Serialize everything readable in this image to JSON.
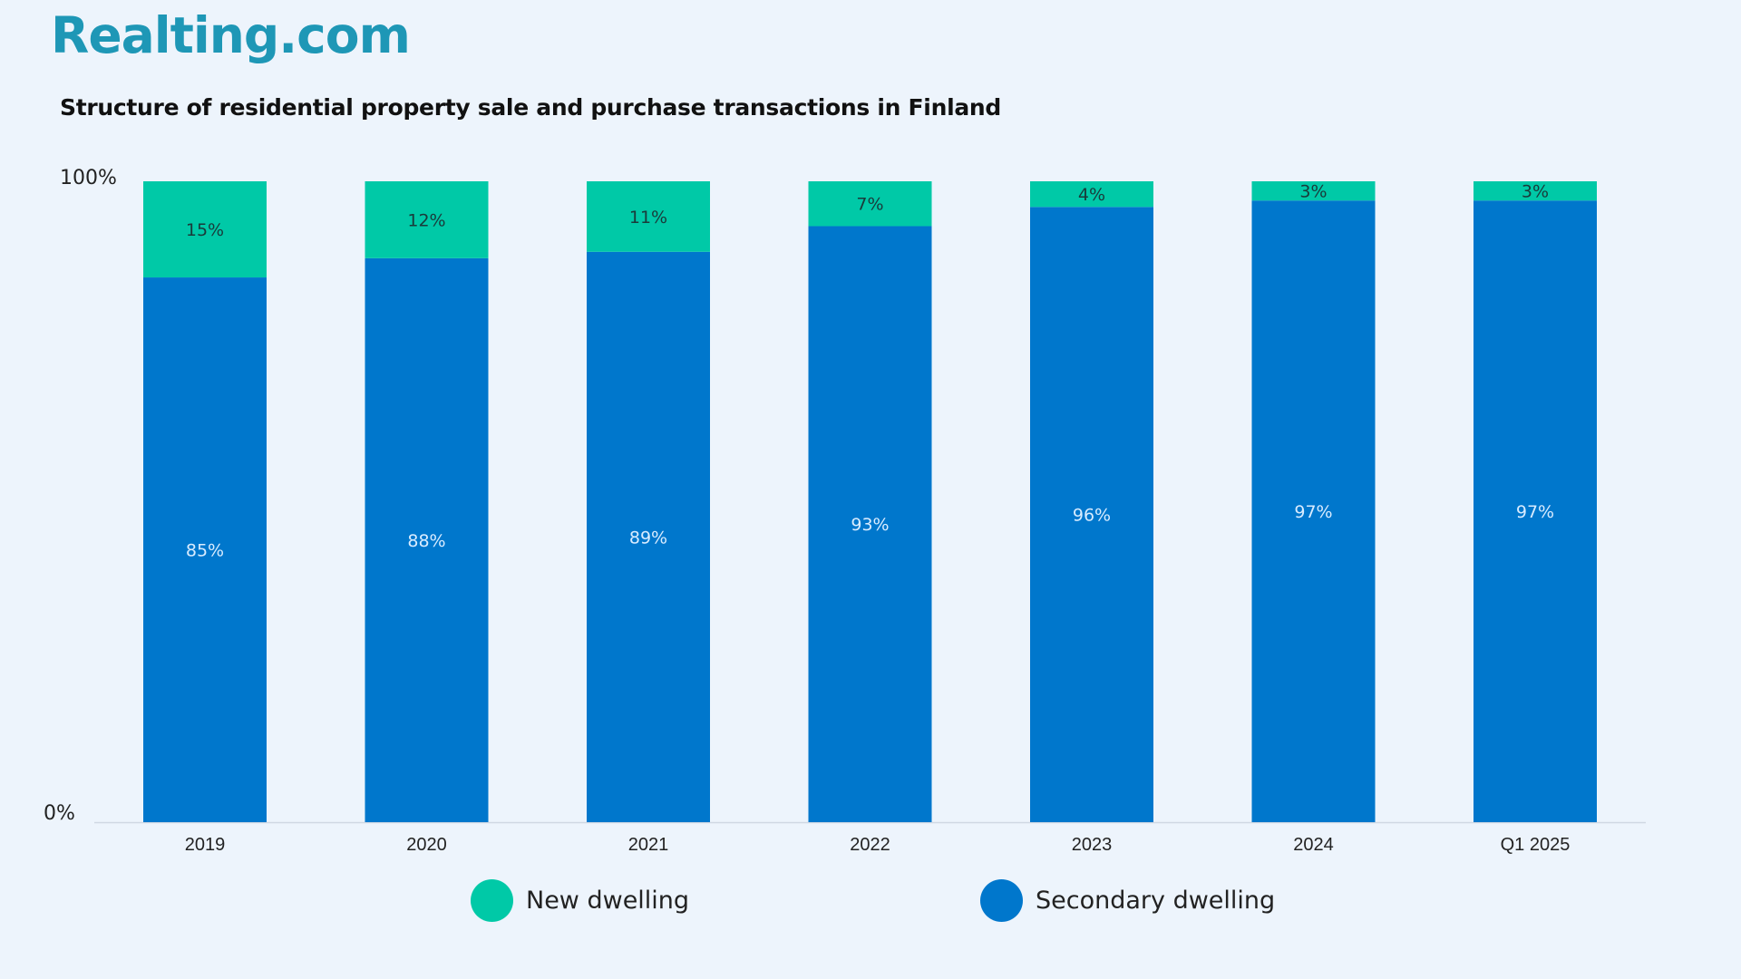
{
  "brand": {
    "name": "Realting.com"
  },
  "chart_data": {
    "type": "bar",
    "stacked": true,
    "title": "Structure of residential property sale and purchase transactions in Finland",
    "categories": [
      "2019",
      "2020",
      "2021",
      "2022",
      "2023",
      "2024",
      "Q1 2025"
    ],
    "series": [
      {
        "name": "Secondary dwelling",
        "values": [
          85,
          88,
          89,
          93,
          96,
          97,
          97
        ],
        "labels": [
          "85%",
          "88%",
          "89%",
          "93%",
          "96%",
          "97%",
          "97%"
        ],
        "color": "#0077cc"
      },
      {
        "name": "New dwelling",
        "values": [
          15,
          12,
          11,
          7,
          4,
          3,
          3
        ],
        "labels": [
          "15%",
          "12%",
          "11%",
          "7%",
          "4%",
          "3%",
          "3%"
        ],
        "color": "#00c9a7"
      }
    ],
    "ylim": [
      0,
      100
    ],
    "y_ticks": [
      "0%",
      "100%"
    ],
    "grid": false,
    "legend_position": "bottom"
  },
  "legend": {
    "new_label": "New dwelling",
    "secondary_label": "Secondary dwelling"
  }
}
